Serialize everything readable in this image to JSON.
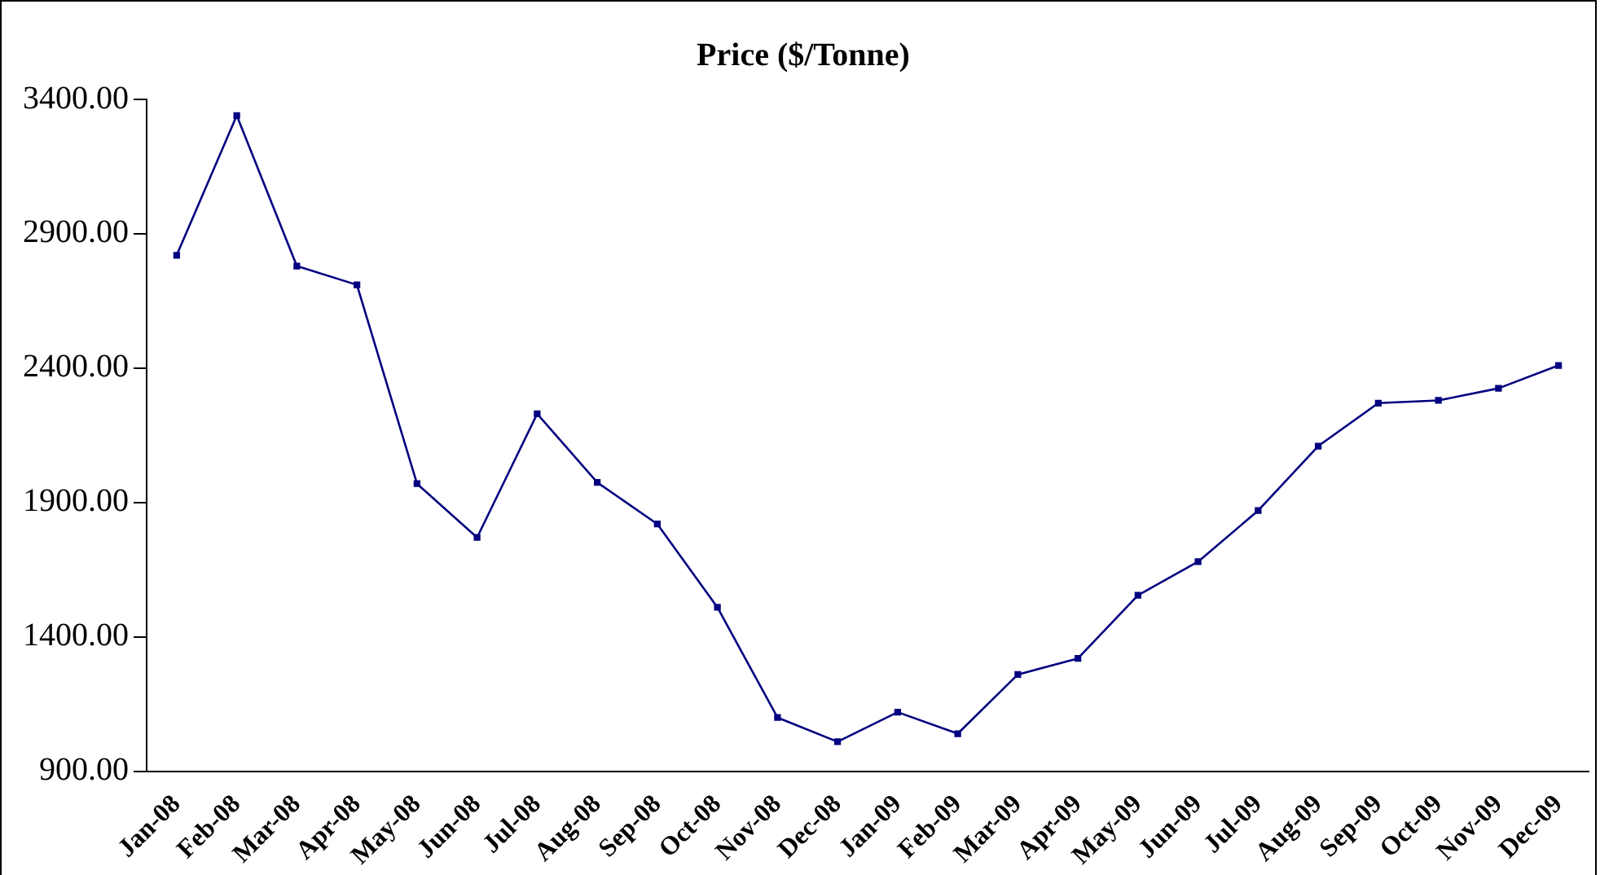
{
  "chart_data": {
    "type": "line",
    "title": "Price ($/Tonne)",
    "categories": [
      "Jan-08",
      "Feb-08",
      "Mar-08",
      "Apr-08",
      "May-08",
      "Jun-08",
      "Jul-08",
      "Aug-08",
      "Sep-08",
      "Oct-08",
      "Nov-08",
      "Dec-08",
      "Jan-09",
      "Feb-09",
      "Mar-09",
      "Apr-09",
      "May-09",
      "Jun-09",
      "Jul-09",
      "Aug-09",
      "Sep-09",
      "Oct-09",
      "Nov-09",
      "Dec-09"
    ],
    "series": [
      {
        "color": "#000080",
        "values": [
          2820,
          3340,
          2780,
          2710,
          1970,
          1770,
          2230,
          1975,
          1820,
          1510,
          1100,
          1010,
          1120,
          1040,
          1260,
          1320,
          1555,
          1680,
          1870,
          2110,
          2270,
          2280,
          2325,
          2410
        ]
      }
    ],
    "ylim": [
      900,
      3400
    ],
    "yticks": [
      {
        "value": 900,
        "label": "900.00"
      },
      {
        "value": 1400,
        "label": "1400.00"
      },
      {
        "value": 1900,
        "label": "1900.00"
      },
      {
        "value": 2400,
        "label": "2400.00"
      },
      {
        "value": 2900,
        "label": "2900.00"
      },
      {
        "value": 3400,
        "label": "3400.00"
      }
    ],
    "grid": false,
    "legend": false,
    "marker": "square",
    "line_style": "solid"
  }
}
